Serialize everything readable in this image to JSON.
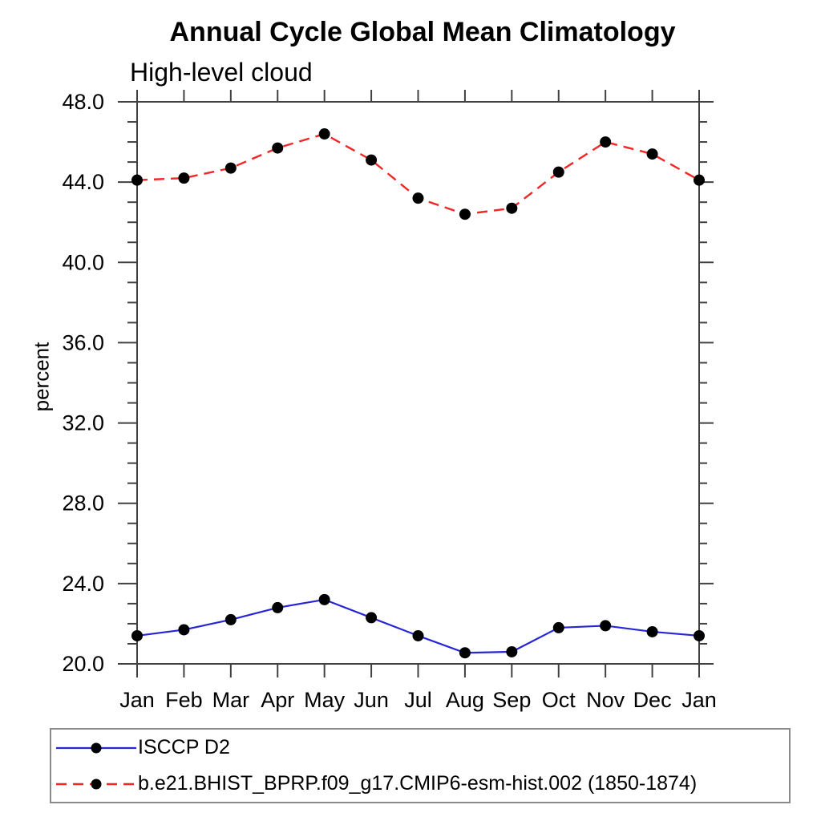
{
  "page": {
    "background": "#ffffff"
  },
  "chart_data": {
    "type": "line",
    "title": "Annual Cycle Global Mean Climatology",
    "subtitle": "High-level cloud",
    "xlabel": "",
    "ylabel": "percent",
    "categories": [
      "Jan",
      "Feb",
      "Mar",
      "Apr",
      "May",
      "Jun",
      "Jul",
      "Aug",
      "Sep",
      "Oct",
      "Nov",
      "Dec",
      "Jan"
    ],
    "y_axis": {
      "min": 20.0,
      "max": 48.0,
      "major_step": 4.0,
      "minor_step": 1.0,
      "tick_labels": [
        "20.0",
        "24.0",
        "28.0",
        "32.0",
        "36.0",
        "40.0",
        "44.0",
        "48.0"
      ]
    },
    "grid": false,
    "axis_color": "#404040",
    "marker_shape": "filled-circle",
    "series": [
      {
        "name": "ISCCP D2",
        "color": "#2626d6",
        "line_style": "solid",
        "marker_color": "#000000",
        "values": [
          21.4,
          21.7,
          22.2,
          22.8,
          23.2,
          22.3,
          21.4,
          20.55,
          20.6,
          21.8,
          21.9,
          21.6,
          21.4
        ]
      },
      {
        "name": "b.e21.BHIST_BPRP.f09_g17.CMIP6-esm-hist.002 (1850-1874)",
        "color": "#f42525",
        "line_style": "dashed",
        "marker_color": "#000000",
        "values": [
          44.1,
          44.2,
          44.7,
          45.7,
          46.4,
          45.1,
          43.2,
          42.4,
          42.7,
          44.5,
          46.0,
          45.4,
          44.1
        ]
      }
    ],
    "legend": {
      "position": "bottom-left-box",
      "entries": [
        "ISCCP D2",
        "b.e21.BHIST_BPRP.f09_g17.CMIP6-esm-hist.002 (1850-1874)"
      ]
    }
  }
}
